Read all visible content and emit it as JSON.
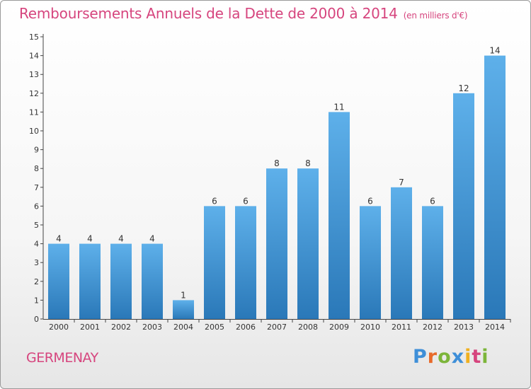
{
  "header": {
    "title": "Remboursements Annuels de la Dette de 2000 à 2014",
    "unit": "(en milliers d'€)"
  },
  "footer": {
    "town": "GERMENAY",
    "logo": "Proxiti"
  },
  "colors": {
    "accent": "#d6457e",
    "bar_top": "#5eb0ea",
    "bar_bottom": "#2a78b8"
  },
  "chart_data": {
    "type": "bar",
    "categories": [
      "2000",
      "2001",
      "2002",
      "2003",
      "2004",
      "2005",
      "2006",
      "2007",
      "2008",
      "2009",
      "2010",
      "2011",
      "2012",
      "2013",
      "2014"
    ],
    "values": [
      4,
      4,
      4,
      4,
      1,
      6,
      6,
      8,
      8,
      11,
      6,
      7,
      6,
      12,
      14
    ],
    "title": "Remboursements Annuels de la Dette de 2000 à 2014",
    "subtitle": "(en milliers d'€)",
    "xlabel": "",
    "ylabel": "",
    "ylim": [
      0,
      15
    ],
    "yticks": [
      0,
      1,
      2,
      3,
      4,
      5,
      6,
      7,
      8,
      9,
      10,
      11,
      12,
      13,
      14,
      15
    ],
    "grid": false,
    "data_labels": true
  }
}
